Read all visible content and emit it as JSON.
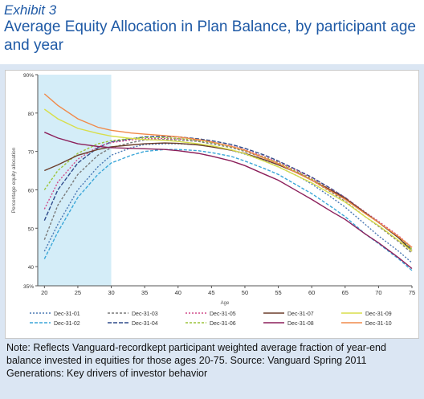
{
  "header": {
    "exhibit": "Exhibit 3",
    "title": "Average Equity Allocation in Plan Balance, by  participant age and year"
  },
  "note": "Note: Reflects Vanguard-recordkept participant weighted average fraction of year-end balance invested in equities for those ages 20-75.  Source: Vanguard Spring 2011 Generations: Key drivers of investor behavior",
  "chart_data": {
    "type": "line",
    "xlabel": "Age",
    "ylabel": "Percentage equity allocation",
    "xlim": [
      19,
      75
    ],
    "ylim": [
      35,
      90
    ],
    "x_ticks": [
      20,
      25,
      30,
      35,
      40,
      45,
      50,
      55,
      60,
      65,
      70,
      75
    ],
    "y_ticks": [
      {
        "value": 35,
        "label": "35%"
      },
      {
        "value": 40,
        "label": "40"
      },
      {
        "value": 50,
        "label": "50"
      },
      {
        "value": 60,
        "label": "60"
      },
      {
        "value": 70,
        "label": "70"
      },
      {
        "value": 80,
        "label": "80"
      },
      {
        "value": 90,
        "label": "90%"
      }
    ],
    "shaded_range": [
      19,
      30
    ],
    "shade_color": "#d4edf8",
    "grid": false,
    "legend_position": "bottom",
    "x": [
      20,
      22,
      25,
      28,
      30,
      33,
      35,
      38,
      40,
      43,
      45,
      48,
      50,
      53,
      55,
      58,
      60,
      63,
      65,
      68,
      70,
      73,
      75
    ],
    "series": [
      {
        "name": "Dec-31-01",
        "color": "#4a78b4",
        "dash": "2,2",
        "values": [
          44,
          51,
          60,
          66,
          69,
          71,
          71.8,
          72,
          72,
          71.8,
          71.3,
          70.3,
          69.3,
          67.5,
          66,
          63.5,
          61.5,
          58,
          55.5,
          51,
          48,
          44,
          41
        ]
      },
      {
        "name": "Dec-31-02",
        "color": "#3aa6d8",
        "dash": "4,2",
        "values": [
          42,
          49,
          58,
          64,
          67,
          69,
          70,
          70.5,
          70.5,
          70.2,
          69.7,
          68.7,
          67.5,
          65.5,
          64,
          61,
          59,
          55.5,
          53,
          48.5,
          46,
          42,
          39
        ]
      },
      {
        "name": "Dec-31-03",
        "color": "#7a7a7a",
        "dash": "3,2",
        "values": [
          47,
          56,
          64,
          69,
          71,
          72.3,
          73,
          73.1,
          73,
          72.6,
          72,
          71,
          70,
          68.2,
          66.8,
          64.3,
          62.5,
          59.3,
          57,
          53,
          50.5,
          46.5,
          43.5
        ]
      },
      {
        "name": "Dec-31-04",
        "color": "#2e4a8a",
        "dash": "5,2",
        "values": [
          52,
          60,
          67,
          71,
          72.5,
          73.3,
          73.8,
          73.9,
          73.8,
          73.3,
          72.8,
          71.8,
          70.8,
          69,
          67.5,
          65,
          63.3,
          60.2,
          58,
          54,
          51.5,
          47.5,
          44.5
        ]
      },
      {
        "name": "Dec-31-05",
        "color": "#d04a8a",
        "dash": "2,2",
        "values": [
          55,
          62,
          68,
          71.2,
          72.3,
          73,
          73.3,
          73.4,
          73.3,
          72.9,
          72.4,
          71.4,
          70.4,
          68.6,
          67.2,
          64.8,
          63,
          60,
          58,
          54.2,
          51.8,
          48,
          45
        ]
      },
      {
        "name": "Dec-31-06",
        "color": "#9cc43a",
        "dash": "3,2",
        "values": [
          60,
          65,
          69.5,
          72,
          72.8,
          73.4,
          73.6,
          73.6,
          73.4,
          72.9,
          72.3,
          71.2,
          70.2,
          68.4,
          67,
          64.5,
          62.8,
          59.8,
          57.8,
          54,
          51.5,
          47.5,
          44.5
        ]
      },
      {
        "name": "Dec-31-07",
        "color": "#6b3d2a",
        "dash": "",
        "values": [
          65,
          66.5,
          69,
          70.5,
          71.2,
          71.7,
          72,
          72.2,
          72.1,
          71.7,
          71.2,
          70.3,
          69.5,
          67.8,
          66.5,
          64.3,
          62.5,
          59.8,
          57.8,
          54,
          51.5,
          47.5,
          44
        ]
      },
      {
        "name": "Dec-31-08",
        "color": "#8b1f5a",
        "dash": "",
        "values": [
          75,
          73.5,
          72,
          71.3,
          71,
          70.8,
          70.7,
          70.5,
          70.2,
          69.5,
          68.8,
          67.5,
          66.3,
          64,
          62.5,
          59.5,
          57.5,
          54.3,
          52.3,
          48.5,
          46.2,
          42.3,
          39.5
        ]
      },
      {
        "name": "Dec-31-09",
        "color": "#d8de4a",
        "dash": "",
        "values": [
          81,
          78.5,
          76,
          74.7,
          74,
          73.4,
          73.1,
          72.9,
          72.6,
          72,
          71.5,
          70.4,
          69.4,
          67.4,
          66,
          63.5,
          61.8,
          58.8,
          56.8,
          53,
          50.7,
          46.8,
          44
        ]
      },
      {
        "name": "Dec-31-10",
        "color": "#f08a4a",
        "dash": "",
        "values": [
          85,
          82,
          78.5,
          76.3,
          75.5,
          74.8,
          74.5,
          74.1,
          73.8,
          73.1,
          72.5,
          71.3,
          70.3,
          68.2,
          66.8,
          64.2,
          62.5,
          59.5,
          57.5,
          53.8,
          51.5,
          47.8,
          45
        ]
      }
    ]
  }
}
